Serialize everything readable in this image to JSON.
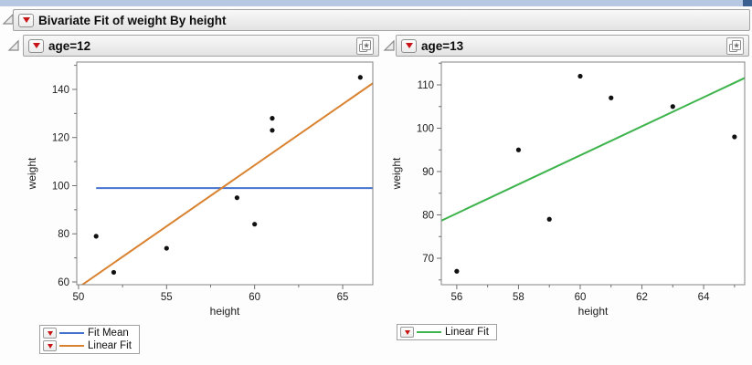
{
  "title_bar": {
    "title": "Bivariate Fit of weight By height"
  },
  "panels": [
    {
      "header": "age=12"
    },
    {
      "header": "age=13"
    }
  ],
  "icons": {
    "disclosure_open": "open-outline-triangle",
    "red_triangle_menu": "red-down-triangle",
    "bookmark": "layered-star-square"
  },
  "colors": {
    "fit_mean_blue": "#4472cf",
    "linear_fit_orange": "#d9822f",
    "linear_fit_green": "#3cb44b",
    "point_black": "#111111",
    "frame_gray": "#848484",
    "top_strip_blue": "#b7c9e2",
    "corner_dark_blue": "#3c5f91"
  },
  "chart_data": [
    {
      "type": "scatter",
      "group": "age=12",
      "xlabel": "height",
      "ylabel": "weight",
      "xlim": [
        49.9,
        66.71
      ],
      "ylim": [
        58.86,
        151.36
      ],
      "xticks": [
        50,
        55,
        60,
        65
      ],
      "yticks": [
        60,
        80,
        100,
        120,
        140
      ],
      "xminor": [
        52.5,
        57.5,
        62.5
      ],
      "yminor": [
        70,
        90,
        110,
        130,
        150
      ],
      "points": [
        [
          51,
          79
        ],
        [
          52,
          64
        ],
        [
          55,
          74
        ],
        [
          59,
          95
        ],
        [
          60,
          84
        ],
        [
          61,
          123
        ],
        [
          61,
          128
        ],
        [
          66,
          145
        ]
      ],
      "lines": [
        {
          "name": "Fit Mean",
          "kind": "mean",
          "y": 99,
          "color": "#4472cf",
          "x_range": [
            51,
            66.71
          ]
        },
        {
          "name": "Linear Fit",
          "kind": "linear",
          "slope": 5.075,
          "intercept": -196.0,
          "color": "#d9822f",
          "x_range": null
        }
      ],
      "legend": [
        {
          "label": "Fit Mean",
          "color": "#4472cf"
        },
        {
          "label": "Linear Fit",
          "color": "#d9822f"
        }
      ]
    },
    {
      "type": "scatter",
      "group": "age=13",
      "xlabel": "height",
      "ylabel": "weight",
      "xlim": [
        55.5,
        65.33
      ],
      "ylim": [
        63.9,
        115.26
      ],
      "xticks": [
        56,
        58,
        60,
        62,
        64
      ],
      "yticks": [
        70,
        80,
        90,
        100,
        110
      ],
      "xminor": [
        57,
        59,
        61,
        63,
        65
      ],
      "yminor": [
        65,
        75,
        85,
        95,
        105,
        115
      ],
      "points": [
        [
          56,
          67
        ],
        [
          58,
          95
        ],
        [
          59,
          79
        ],
        [
          60,
          112
        ],
        [
          61,
          107
        ],
        [
          63,
          105
        ],
        [
          65,
          98
        ]
      ],
      "lines": [
        {
          "name": "Linear Fit",
          "kind": "linear",
          "slope": 3.348,
          "intercept": -107.14,
          "color": "#3cb44b",
          "x_range": null
        }
      ],
      "legend": [
        {
          "label": "Linear Fit",
          "color": "#3cb44b"
        }
      ]
    }
  ]
}
